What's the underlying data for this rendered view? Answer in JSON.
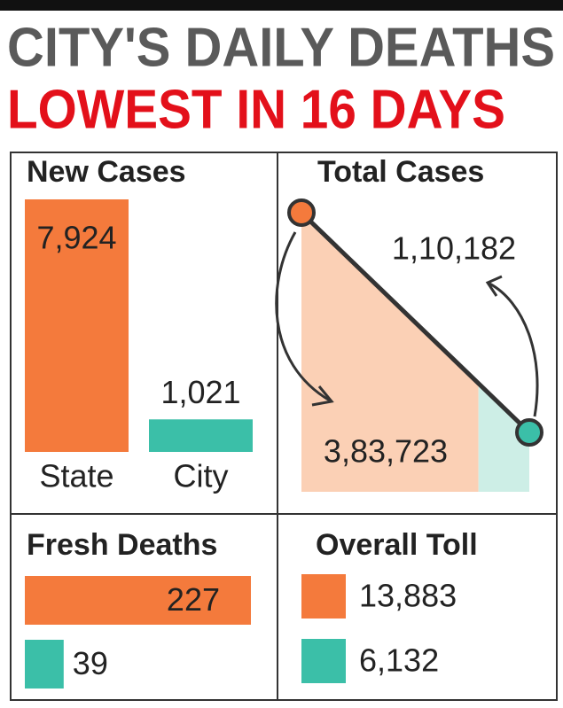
{
  "header": {
    "line1": "CITY'S DAILY DEATHS",
    "line2": "LOWEST IN 16 DAYS"
  },
  "chart_data": [
    {
      "type": "bar",
      "title": "New Cases",
      "categories": [
        "State",
        "City"
      ],
      "values": [
        7924,
        1021
      ],
      "value_labels": [
        "7,924",
        "1,021"
      ],
      "colors": [
        "#f47a3c",
        "#3bbfa8"
      ]
    },
    {
      "type": "area",
      "title": "Total Cases",
      "values": [
        383723,
        110182
      ],
      "value_labels": [
        "3,83,723",
        "1,10,182"
      ],
      "colors": [
        "#f47a3c",
        "#3bbfa8"
      ]
    },
    {
      "type": "hbar",
      "title": "Fresh Deaths",
      "values": [
        227,
        39
      ],
      "colors": [
        "#f47a3c",
        "#3bbfa8"
      ]
    },
    {
      "type": "swatch",
      "title": "Overall Toll",
      "values": [
        13883,
        6132
      ],
      "value_labels": [
        "13,883",
        "6,132"
      ],
      "colors": [
        "#f47a3c",
        "#3bbfa8"
      ]
    }
  ]
}
